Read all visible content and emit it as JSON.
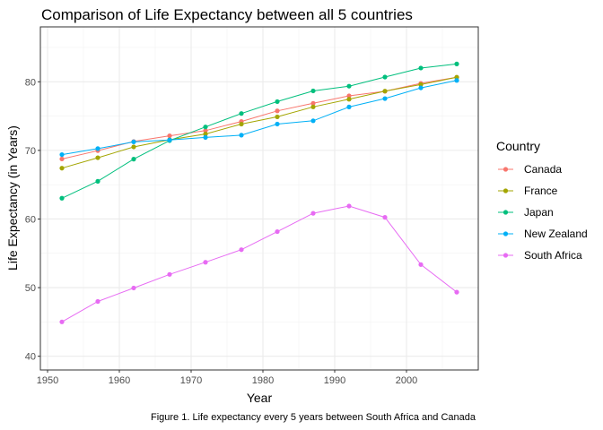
{
  "chart_data": {
    "type": "line",
    "title": "Comparison of Life Expectancy between all 5 countries",
    "xlabel": "Year",
    "ylabel": "Life Expectancy (in Years)",
    "caption": "Figure 1. Life expectancy every 5 years between South Africa and Canada",
    "xlim": [
      1949,
      2010
    ],
    "ylim": [
      38,
      88
    ],
    "x_ticks": [
      1950,
      1960,
      1970,
      1980,
      1990,
      2000
    ],
    "y_ticks": [
      40,
      50,
      60,
      70,
      80
    ],
    "grid": true,
    "legend": {
      "title": "Country",
      "position": "right"
    },
    "x": [
      1952,
      1957,
      1962,
      1967,
      1972,
      1977,
      1982,
      1987,
      1992,
      1997,
      2002,
      2007
    ],
    "series": [
      {
        "name": "Canada",
        "color": "#F8766D",
        "values": [
          68.75,
          69.96,
          71.3,
          72.13,
          72.88,
          74.21,
          75.76,
          76.86,
          77.95,
          78.61,
          79.77,
          80.65
        ]
      },
      {
        "name": "France",
        "color": "#A3A500",
        "values": [
          67.41,
          68.93,
          70.51,
          71.55,
          72.38,
          73.83,
          74.89,
          76.34,
          77.46,
          78.64,
          79.59,
          80.66
        ]
      },
      {
        "name": "Japan",
        "color": "#00BF7D",
        "values": [
          63.03,
          65.5,
          68.73,
          71.43,
          73.42,
          75.38,
          77.11,
          78.67,
          79.36,
          80.69,
          82.0,
          82.6
        ]
      },
      {
        "name": "New Zealand",
        "color": "#00B0F6",
        "values": [
          69.39,
          70.26,
          71.24,
          71.52,
          71.89,
          72.22,
          73.84,
          74.32,
          76.33,
          77.55,
          79.11,
          80.2
        ]
      },
      {
        "name": "South Africa",
        "color": "#E76BF3",
        "values": [
          45.01,
          47.99,
          49.95,
          51.93,
          53.7,
          55.53,
          58.16,
          60.83,
          61.89,
          60.24,
          53.36,
          49.34
        ]
      }
    ]
  }
}
